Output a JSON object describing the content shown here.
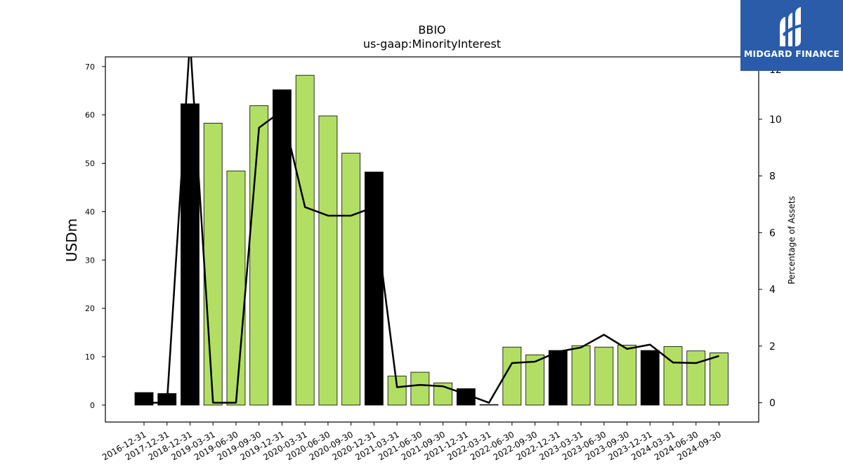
{
  "chart_data": {
    "type": "bar",
    "title": "BBIO",
    "subtitle": "us-gaap:MinorityInterest",
    "ylabel": "USDm",
    "y2label": "Percentage of Assets",
    "ylim": [
      -3.5,
      72
    ],
    "y2lim": [
      -0.68,
      12.2
    ],
    "yticks": [
      0,
      10,
      20,
      30,
      40,
      50,
      60,
      70
    ],
    "y2ticks": [
      0,
      2,
      4,
      6,
      8,
      10
    ],
    "y2tick_partial": "12",
    "categories": [
      "2016-12-31",
      "2017-12-31",
      "2018-12-31",
      "2019-03-31",
      "2019-06-30",
      "2019-09-30",
      "2019-12-31",
      "2020-03-31",
      "2020-06-30",
      "2020-09-30",
      "2020-12-31",
      "2021-03-31",
      "2021-06-30",
      "2021-09-30",
      "2021-12-31",
      "2022-03-31",
      "2022-06-30",
      "2022-09-30",
      "2022-12-31",
      "2023-03-31",
      "2023-06-30",
      "2023-09-30",
      "2023-12-31",
      "2024-03-31",
      "2024-06-30",
      "2024-09-30"
    ],
    "series": [
      {
        "kind": "bar",
        "values": [
          2.6,
          2.4,
          62.3,
          58.3,
          48.4,
          61.9,
          65.2,
          68.2,
          59.8,
          52.1,
          48.2,
          6.0,
          6.8,
          4.6,
          3.4,
          0.05,
          12.0,
          10.4,
          11.3,
          12.3,
          12.0,
          12.4,
          11.3,
          12.1,
          11.2,
          10.8
        ],
        "colors": [
          "#000000",
          "#000000",
          "#000000",
          "#b2df63",
          "#b2df63",
          "#b2df63",
          "#000000",
          "#b2df63",
          "#b2df63",
          "#b2df63",
          "#000000",
          "#b2df63",
          "#b2df63",
          "#b2df63",
          "#000000",
          "#b2df63",
          "#b2df63",
          "#b2df63",
          "#000000",
          "#b2df63",
          "#b2df63",
          "#b2df63",
          "#000000",
          "#b2df63",
          "#b2df63",
          "#b2df63"
        ]
      },
      {
        "kind": "line",
        "axis": "right",
        "color": "#000000",
        "values": [
          0.0,
          0.0,
          12.8,
          0.0,
          0.0,
          9.7,
          10.3,
          6.9,
          6.6,
          6.6,
          6.9,
          0.55,
          0.63,
          0.58,
          0.3,
          0.0,
          1.4,
          1.45,
          1.8,
          1.95,
          2.4,
          1.9,
          2.05,
          1.42,
          1.4,
          1.65
        ]
      }
    ],
    "grid": false
  },
  "logo": {
    "text": "MIDGARD FINANCE",
    "background": "#2a5caa"
  }
}
